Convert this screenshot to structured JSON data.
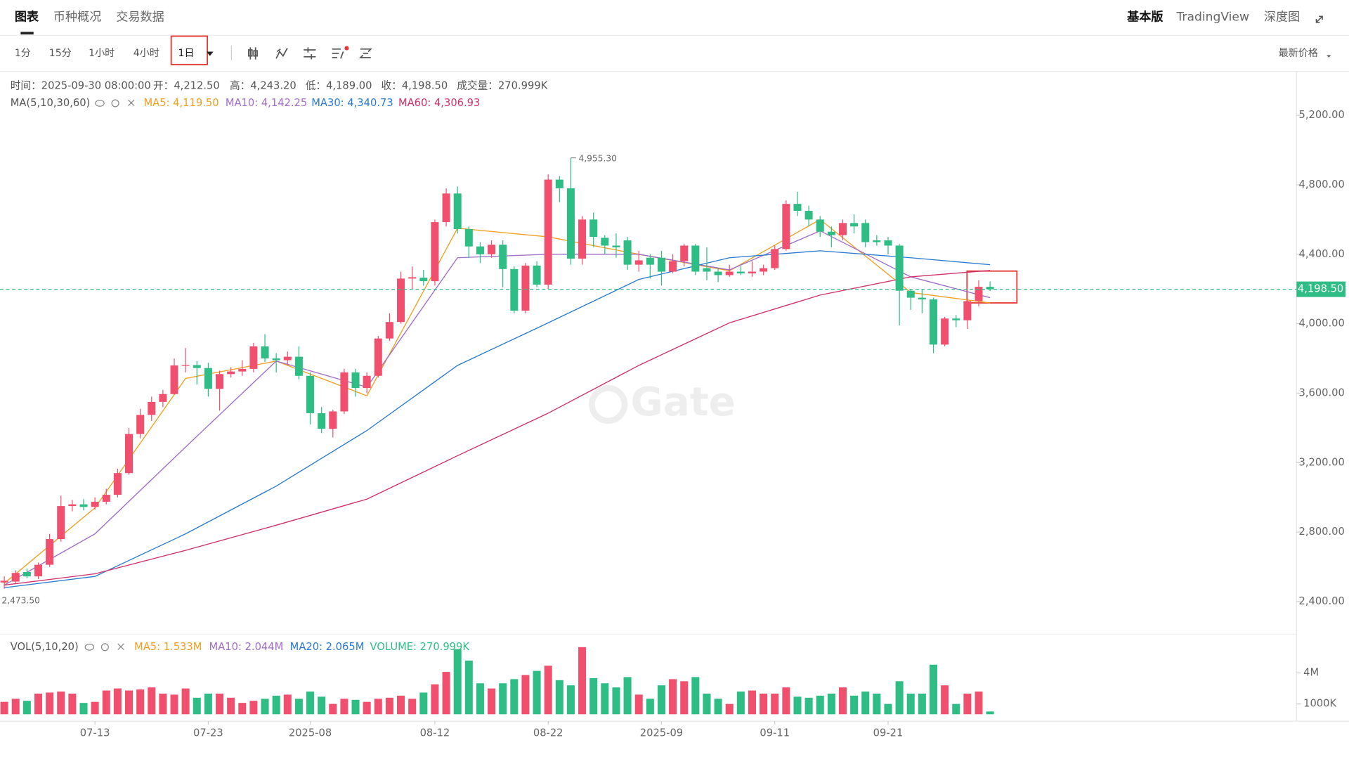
{
  "header": {
    "tabs": [
      "图表",
      "币种概况",
      "交易数据"
    ],
    "right": [
      "基本版",
      "TradingView",
      "深度图"
    ]
  },
  "toolbar": {
    "intervals": [
      "1分",
      "15分",
      "1小时",
      "4小时",
      "1日"
    ],
    "price_type": "最新价格"
  },
  "info": [
    "时间：2025-09-30 08:00:00",
    "开：4,212.50",
    "高：4,243.20",
    "低：4,189.00",
    "收：4,198.50",
    "成交量：270.999K"
  ],
  "ma_legend": {
    "label": "MA(5,10,30,60)"
  },
  "vol_legend": {
    "label": "VOL(5,10,20)",
    "items": [
      {
        "text": "MA5: 1.533M",
        "color": "#f0a020"
      },
      {
        "text": "MA10: 2.044M",
        "color": "#a06ec8"
      },
      {
        "text": "MA20: 2.065M",
        "color": "#2a7ad0"
      },
      {
        "text": "VOLUME: 270.999K",
        "color": "#2ebd85"
      }
    ]
  },
  "watermark": "Gate",
  "chart_data": {
    "type": "candlestick",
    "up_color": "#f0506e",
    "down_color": "#2ebd85",
    "categories": [
      "2025-07-05",
      "2025-07-06",
      "2025-07-07",
      "2025-07-08",
      "2025-07-09",
      "2025-07-10",
      "2025-07-11",
      "2025-07-12",
      "2025-07-13",
      "2025-07-14",
      "2025-07-15",
      "2025-07-16",
      "2025-07-17",
      "2025-07-18",
      "2025-07-19",
      "2025-07-20",
      "2025-07-21",
      "2025-07-22",
      "2025-07-23",
      "2025-07-24",
      "2025-07-25",
      "2025-07-26",
      "2025-07-27",
      "2025-07-28",
      "2025-07-29",
      "2025-07-30",
      "2025-07-31",
      "2025-08-01",
      "2025-08-02",
      "2025-08-03",
      "2025-08-04",
      "2025-08-05",
      "2025-08-06",
      "2025-08-07",
      "2025-08-08",
      "2025-08-09",
      "2025-08-10",
      "2025-08-11",
      "2025-08-12",
      "2025-08-13",
      "2025-08-14",
      "2025-08-15",
      "2025-08-16",
      "2025-08-17",
      "2025-08-18",
      "2025-08-19",
      "2025-08-20",
      "2025-08-21",
      "2025-08-22",
      "2025-08-23",
      "2025-08-24",
      "2025-08-25",
      "2025-08-26",
      "2025-08-27",
      "2025-08-28",
      "2025-08-29",
      "2025-08-30",
      "2025-08-31",
      "2025-09-01",
      "2025-09-02",
      "2025-09-03",
      "2025-09-04",
      "2025-09-05",
      "2025-09-06",
      "2025-09-07",
      "2025-09-08",
      "2025-09-09",
      "2025-09-10",
      "2025-09-11",
      "2025-09-12",
      "2025-09-13",
      "2025-09-14",
      "2025-09-15",
      "2025-09-16",
      "2025-09-17",
      "2025-09-18",
      "2025-09-19",
      "2025-09-20",
      "2025-09-21",
      "2025-09-22",
      "2025-09-23",
      "2025-09-24",
      "2025-09-25",
      "2025-09-26",
      "2025-09-27",
      "2025-09-28",
      "2025-09-29",
      "2025-09-30"
    ],
    "open": [
      2510,
      2515,
      2570,
      2545,
      2612,
      2760,
      2950,
      2960,
      2945,
      2975,
      3015,
      3140,
      3365,
      3475,
      3550,
      3595,
      3760,
      3762,
      3745,
      3625,
      3710,
      3725,
      3740,
      3870,
      3800,
      3790,
      3810,
      3700,
      3485,
      3395,
      3495,
      3720,
      3630,
      3700,
      3915,
      4010,
      4260,
      4265,
      4245,
      4585,
      4750,
      4545,
      4445,
      4400,
      4455,
      4315,
      4075,
      4335,
      4225,
      4830,
      4780,
      4375,
      4600,
      4495,
      4450,
      4480,
      4340,
      4380,
      4380,
      4300,
      4360,
      4450,
      4320,
      4300,
      4280,
      4300,
      4290,
      4300,
      4320,
      4430,
      4690,
      4650,
      4600,
      4530,
      4510,
      4580,
      4580,
      4480,
      4480,
      4450,
      4190,
      4150,
      4140,
      3880,
      4030,
      4020,
      4130,
      4212.5
    ],
    "high": [
      2545,
      2580,
      2590,
      2625,
      2790,
      3010,
      2985,
      2990,
      3000,
      3050,
      3165,
      3400,
      3510,
      3580,
      3620,
      3800,
      3860,
      3785,
      3775,
      3730,
      3750,
      3790,
      3890,
      3940,
      3830,
      3840,
      3870,
      3720,
      3520,
      3505,
      3740,
      3740,
      3720,
      3930,
      4060,
      4300,
      4330,
      4310,
      4600,
      4780,
      4790,
      4560,
      4470,
      4480,
      4480,
      4330,
      4350,
      4360,
      4860,
      4850,
      4955.3,
      4620,
      4640,
      4510,
      4520,
      4500,
      4420,
      4400,
      4420,
      4400,
      4460,
      4460,
      4440,
      4320,
      4340,
      4330,
      4360,
      4340,
      4450,
      4710,
      4760,
      4680,
      4620,
      4560,
      4600,
      4630,
      4600,
      4510,
      4500,
      4460,
      4200,
      4200,
      4150,
      4040,
      4050,
      4140,
      4250,
      4243.2
    ],
    "low": [
      2473.5,
      2505,
      2535,
      2530,
      2600,
      2745,
      2920,
      2925,
      2930,
      2960,
      3000,
      3130,
      3340,
      3440,
      3520,
      3590,
      3720,
      3650,
      3580,
      3500,
      3690,
      3700,
      3720,
      3780,
      3720,
      3760,
      3680,
      3420,
      3370,
      3345,
      3480,
      3580,
      3600,
      3690,
      3900,
      4000,
      4200,
      4220,
      4220,
      4560,
      4520,
      4380,
      4350,
      4380,
      4210,
      4060,
      4060,
      4210,
      4200,
      4700,
      4340,
      4340,
      4440,
      4400,
      4380,
      4310,
      4300,
      4260,
      4220,
      4290,
      4330,
      4280,
      4250,
      4240,
      4270,
      4280,
      4270,
      4280,
      4310,
      4420,
      4620,
      4560,
      4500,
      4440,
      4480,
      4520,
      4440,
      4450,
      4400,
      3990,
      4080,
      4060,
      3830,
      3870,
      3980,
      3970,
      4100,
      4189
    ],
    "close": [
      2520,
      2565,
      2545,
      2612,
      2760,
      2950,
      2960,
      2945,
      2975,
      3015,
      3140,
      3365,
      3475,
      3550,
      3595,
      3760,
      3762,
      3745,
      3625,
      3710,
      3725,
      3740,
      3870,
      3800,
      3790,
      3810,
      3700,
      3485,
      3395,
      3495,
      3720,
      3630,
      3700,
      3915,
      4010,
      4260,
      4268,
      4245,
      4585,
      4750,
      4545,
      4445,
      4400,
      4455,
      4315,
      4075,
      4335,
      4225,
      4830,
      4780,
      4375,
      4600,
      4500,
      4450,
      4440,
      4340,
      4365,
      4340,
      4300,
      4360,
      4450,
      4300,
      4300,
      4280,
      4300,
      4290,
      4300,
      4320,
      4430,
      4690,
      4650,
      4600,
      4530,
      4510,
      4580,
      4560,
      4470,
      4470,
      4450,
      4190,
      4150,
      4140,
      3880,
      4030,
      4020,
      4130,
      4212.5,
      4198.5
    ],
    "ylim": [
      2222,
      5443
    ],
    "yticks": [
      {
        "value": 2400,
        "label": "2,400.00"
      },
      {
        "value": 2800,
        "label": "2,800.00"
      },
      {
        "value": 3200,
        "label": "3,200.00"
      },
      {
        "value": 3600,
        "label": "3,600.00"
      },
      {
        "value": 4000,
        "label": "4,000.00"
      },
      {
        "value": 4400,
        "label": "4,400.00"
      },
      {
        "value": 4800,
        "label": "4,800.00"
      },
      {
        "value": 5200,
        "label": "5,200.00"
      }
    ],
    "xticks": [
      {
        "value": "2025-07-13",
        "label": "07-13"
      },
      {
        "value": "2025-07-23",
        "label": "07-23"
      },
      {
        "value": "2025-08-01",
        "label": "2025-08"
      },
      {
        "value": "2025-08-12",
        "label": "08-12"
      },
      {
        "value": "2025-08-22",
        "label": "08-22"
      },
      {
        "value": "2025-09-01",
        "label": "2025-09"
      },
      {
        "value": "2025-09-11",
        "label": "09-11"
      },
      {
        "value": "2025-09-21",
        "label": "09-21"
      }
    ],
    "last_price": {
      "value": 4198.5,
      "label": "4,198.50"
    },
    "high_label": "4,955.30",
    "low_label": "2,473.50",
    "ma_series": [
      {
        "label": "MA5: 4,119.50",
        "color": "#f0a020",
        "x": [
          "2025-07-05",
          "2025-07-13",
          "2025-07-21",
          "2025-07-29",
          "2025-08-06",
          "2025-08-14",
          "2025-08-22",
          "2025-08-30",
          "2025-09-07",
          "2025-09-15",
          "2025-09-23",
          "2025-09-30"
        ],
        "values": [
          2505,
          2940,
          3685,
          3785,
          3585,
          4550,
          4500,
          4400,
          4305,
          4600,
          4180,
          4120
        ]
      },
      {
        "label": "MA10: 4,142.25",
        "color": "#a06ec8",
        "x": [
          "2025-07-05",
          "2025-07-13",
          "2025-07-21",
          "2025-07-29",
          "2025-08-06",
          "2025-08-14",
          "2025-08-22",
          "2025-08-30",
          "2025-09-07",
          "2025-09-15",
          "2025-09-23",
          "2025-09-30"
        ],
        "values": [
          2495,
          2790,
          3290,
          3785,
          3635,
          4380,
          4400,
          4400,
          4310,
          4535,
          4270,
          4150
        ]
      },
      {
        "label": "MA30: 4,340.73",
        "color": "#2a7ad0",
        "x": [
          "2025-07-05",
          "2025-07-13",
          "2025-07-21",
          "2025-07-29",
          "2025-08-06",
          "2025-08-14",
          "2025-08-22",
          "2025-08-30",
          "2025-09-07",
          "2025-09-15",
          "2025-09-23",
          "2025-09-30"
        ],
        "values": [
          2480,
          2545,
          2790,
          3065,
          3385,
          3760,
          4005,
          4255,
          4380,
          4420,
          4380,
          4340
        ]
      },
      {
        "label": "MA60: 4,306.93",
        "color": "#d0306a",
        "x": [
          "2025-07-05",
          "2025-07-13",
          "2025-07-21",
          "2025-07-29",
          "2025-08-06",
          "2025-08-14",
          "2025-08-22",
          "2025-08-30",
          "2025-09-07",
          "2025-09-15",
          "2025-09-23",
          "2025-09-30"
        ],
        "values": [
          2495,
          2560,
          2695,
          2840,
          2990,
          3240,
          3485,
          3760,
          4005,
          4165,
          4270,
          4307
        ]
      }
    ],
    "volume": {
      "values": [
        1200000,
        1500000,
        1300000,
        2000000,
        2100000,
        2200000,
        2000000,
        1100000,
        1200000,
        2300000,
        2500000,
        2300000,
        2400000,
        2600000,
        2000000,
        1900000,
        2500000,
        1600000,
        2000000,
        2000000,
        1600000,
        1100000,
        1300000,
        1500000,
        1800000,
        1900000,
        1500000,
        2200000,
        1700000,
        1000000,
        1500000,
        1400000,
        1200000,
        1500000,
        1600000,
        1800000,
        1500000,
        2100000,
        2900000,
        4100000,
        6300000,
        5200000,
        3000000,
        2500000,
        3000000,
        3400000,
        3800000,
        4200000,
        4700000,
        3300000,
        2800000,
        6500000,
        3500000,
        3000000,
        2600000,
        3600000,
        1900000,
        1500000,
        2800000,
        3400000,
        3200000,
        3600000,
        2000000,
        1500000,
        1000000,
        2200000,
        2300000,
        2000000,
        2000000,
        2600000,
        1700000,
        1600000,
        1800000,
        2000000,
        2600000,
        1800000,
        2200000,
        2000000,
        1000000,
        3200000,
        2000000,
        2000000,
        4800000,
        2800000,
        1000000,
        2000000,
        2200000,
        270999
      ],
      "ylim": [
        0,
        7500000
      ],
      "yticks": [
        {
          "value": 1000000,
          "label": "1000K"
        },
        {
          "value": 4000000,
          "label": "4M"
        }
      ]
    }
  }
}
